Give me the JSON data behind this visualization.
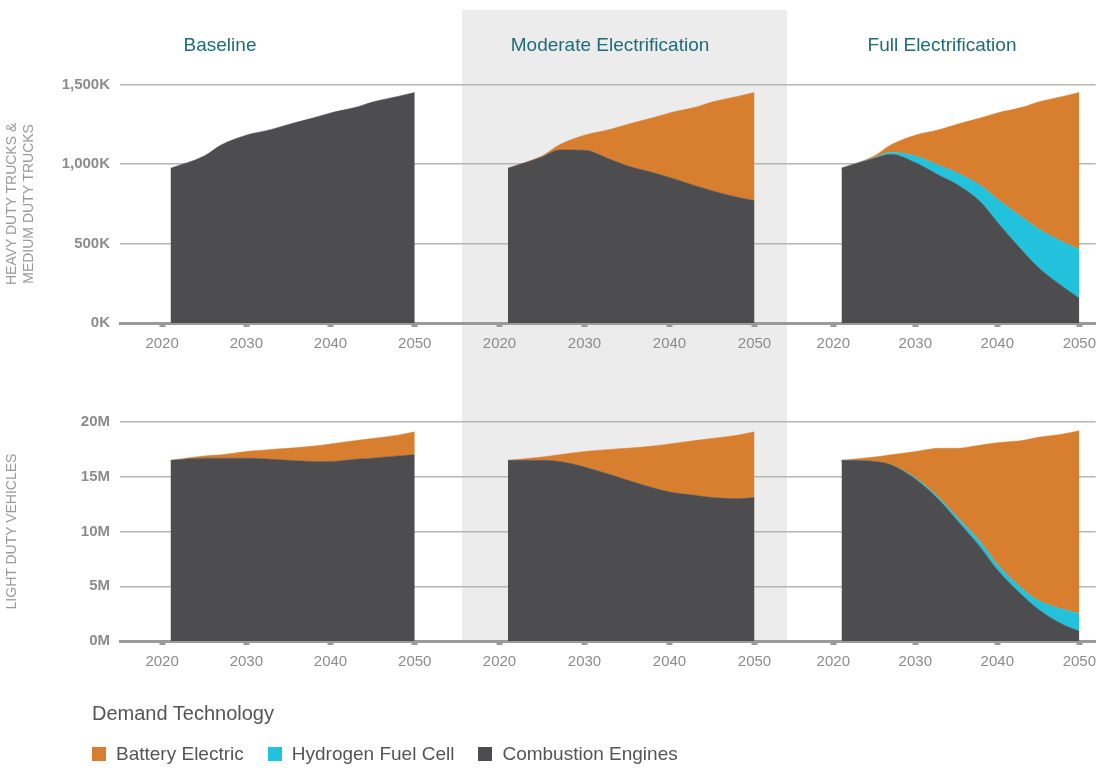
{
  "chart_data": [
    {
      "type": "area",
      "title": "Baseline",
      "ylabel": "HEAVY DUTY TRUCKS &\nMEDIUM DUTY TRUCKS",
      "xlim": [
        2015,
        2053
      ],
      "xticks": [
        2020,
        2030,
        2040,
        2050
      ],
      "ylim": [
        0,
        1500
      ],
      "yticks": [
        {
          "value": 0,
          "label": "0K"
        },
        {
          "value": 500,
          "label": "500K"
        },
        {
          "value": 1000,
          "label": "1,000K"
        },
        {
          "value": 1500,
          "label": "1,500K"
        }
      ],
      "grid": "y",
      "stacked": true,
      "x": [
        2021,
        2025,
        2027,
        2030,
        2033,
        2035,
        2038,
        2040,
        2043,
        2045,
        2048,
        2050
      ],
      "series": [
        {
          "color": "#4d4d4f",
          "values": [
            975,
            1052,
            1121,
            1183,
            1219,
            1250,
            1292,
            1323,
            1358,
            1392,
            1427,
            1452
          ]
        }
      ]
    },
    {
      "type": "area",
      "title": "Moderate Electrification",
      "xlim": [
        2013,
        2053
      ],
      "xticks": [
        2020,
        2030,
        2040,
        2050
      ],
      "ylim": [
        0,
        1500
      ],
      "yticks": [
        0,
        500,
        1000,
        1500
      ],
      "grid": "y",
      "stacked": true,
      "tick_labels": "x",
      "x": [
        2021,
        2025,
        2027,
        2030,
        2033,
        2035,
        2038,
        2040,
        2043,
        2045,
        2048,
        2050
      ],
      "series": [
        {
          "color": "#4d4d4f",
          "values": [
            975,
            1046,
            1090,
            1088,
            1031,
            990,
            948,
            917,
            865,
            833,
            792,
            771
          ]
        },
        {
          "color": "#d87f2f",
          "values": [
            0,
            6,
            31,
            95,
            188,
            260,
            344,
            406,
            493,
            559,
            635,
            681
          ]
        }
      ]
    },
    {
      "type": "area",
      "title": "Full Electrification",
      "xlim": [
        2013.5,
        2052
      ],
      "xticks": [
        2020,
        2030,
        2040,
        2050
      ],
      "ylim": [
        0,
        1500
      ],
      "yticks": [
        0,
        500,
        1000,
        1500
      ],
      "grid": "y",
      "stacked": true,
      "tick_labels": "x",
      "x": [
        2021,
        2025,
        2027,
        2030,
        2033,
        2035,
        2038,
        2040,
        2043,
        2045,
        2048,
        2050
      ],
      "series": [
        {
          "color": "#4d4d4f",
          "values": [
            975,
            1037,
            1062,
            1010,
            927,
            875,
            760,
            635,
            458,
            350,
            229,
            156
          ]
        },
        {
          "color": "#22c1dc",
          "values": [
            0,
            3,
            13,
            42,
            63,
            73,
            105,
            146,
            209,
            244,
            281,
            309
          ]
        },
        {
          "color": "#d87f2f",
          "values": [
            0,
            12,
            46,
            131,
            229,
            302,
            427,
            542,
            691,
            798,
            917,
            987
          ]
        }
      ]
    },
    {
      "type": "area",
      "ylabel": "LIGHT DUTY VEHICLES",
      "xlim": [
        2015,
        2053
      ],
      "xticks": [
        2020,
        2030,
        2040,
        2050
      ],
      "ylim": [
        0,
        20
      ],
      "yticks": [
        {
          "value": 0,
          "label": "0M"
        },
        {
          "value": 5,
          "label": "5M"
        },
        {
          "value": 10,
          "label": "10M"
        },
        {
          "value": 15,
          "label": "15M"
        },
        {
          "value": 20,
          "label": "20M"
        }
      ],
      "grid": "y",
      "stacked": true,
      "x": [
        2021,
        2025,
        2027,
        2030,
        2033,
        2035,
        2038,
        2040,
        2043,
        2045,
        2048,
        2050
      ],
      "series": [
        {
          "color": "#4d4d4f",
          "values": [
            16.5,
            16.7,
            16.7,
            16.7,
            16.6,
            16.5,
            16.4,
            16.4,
            16.6,
            16.7,
            16.9,
            17.0
          ]
        },
        {
          "color": "#d87f2f",
          "values": [
            0,
            0.2,
            0.3,
            0.6,
            0.9,
            1.1,
            1.4,
            1.6,
            1.7,
            1.8,
            1.9,
            2.1
          ]
        }
      ]
    },
    {
      "type": "area",
      "xlim": [
        2013,
        2053
      ],
      "xticks": [
        2020,
        2030,
        2040,
        2050
      ],
      "ylim": [
        0,
        20
      ],
      "yticks": [
        0,
        5,
        10,
        15,
        20
      ],
      "grid": "y",
      "stacked": true,
      "tick_labels": "x",
      "x": [
        2021,
        2025,
        2027,
        2030,
        2033,
        2035,
        2038,
        2040,
        2043,
        2045,
        2048,
        2050
      ],
      "series": [
        {
          "color": "#4d4d4f",
          "values": [
            16.5,
            16.5,
            16.4,
            15.9,
            15.2,
            14.7,
            14.0,
            13.6,
            13.3,
            13.1,
            13.0,
            13.1
          ]
        },
        {
          "color": "#d87f2f",
          "values": [
            0,
            0.3,
            0.6,
            1.4,
            2.3,
            2.9,
            3.8,
            4.4,
            5.0,
            5.4,
            5.8,
            6.0
          ]
        }
      ]
    },
    {
      "type": "area",
      "xlim": [
        2013.5,
        2052
      ],
      "xticks": [
        2020,
        2030,
        2040,
        2050
      ],
      "ylim": [
        0,
        20
      ],
      "yticks": [
        0,
        5,
        10,
        15,
        20
      ],
      "grid": "y",
      "stacked": true,
      "tick_labels": "x",
      "legend": "bottom",
      "legend_title": "Demand Technology",
      "x": [
        2021,
        2025,
        2027,
        2030,
        2033,
        2035,
        2038,
        2040,
        2043,
        2045,
        2048,
        2050
      ],
      "series": [
        {
          "name": "Combustion Engines",
          "color": "#4d4d4f",
          "values": [
            16.5,
            16.4,
            16.1,
            14.8,
            12.8,
            11.1,
            8.5,
            6.5,
            4.2,
            2.9,
            1.5,
            0.9
          ]
        },
        {
          "name": "Hydrogen Fuel Cell",
          "color": "#22c1dc",
          "values": [
            0,
            0,
            0,
            0.1,
            0.2,
            0.3,
            0.5,
            0.5,
            0.6,
            0.8,
            1.4,
            1.6
          ]
        },
        {
          "name": "Battery Electric",
          "color": "#d87f2f",
          "values": [
            0,
            0.4,
            0.9,
            2.4,
            4.6,
            6.2,
            8.9,
            11.1,
            13.5,
            14.9,
            16.0,
            16.7
          ]
        }
      ]
    }
  ]
}
